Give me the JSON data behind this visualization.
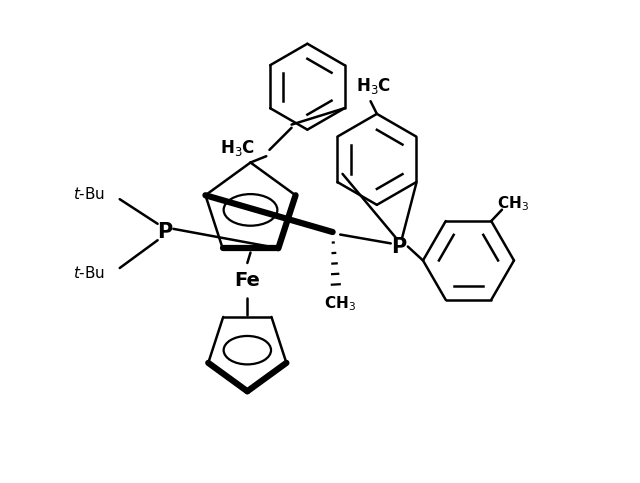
{
  "bg_color": "#ffffff",
  "line_color": "#000000",
  "lw": 1.8,
  "lw_bold": 4.5,
  "fig_width": 6.4,
  "fig_height": 4.83,
  "dpi": 100,
  "xlim": [
    0,
    10
  ],
  "ylim": [
    0,
    7.6
  ]
}
